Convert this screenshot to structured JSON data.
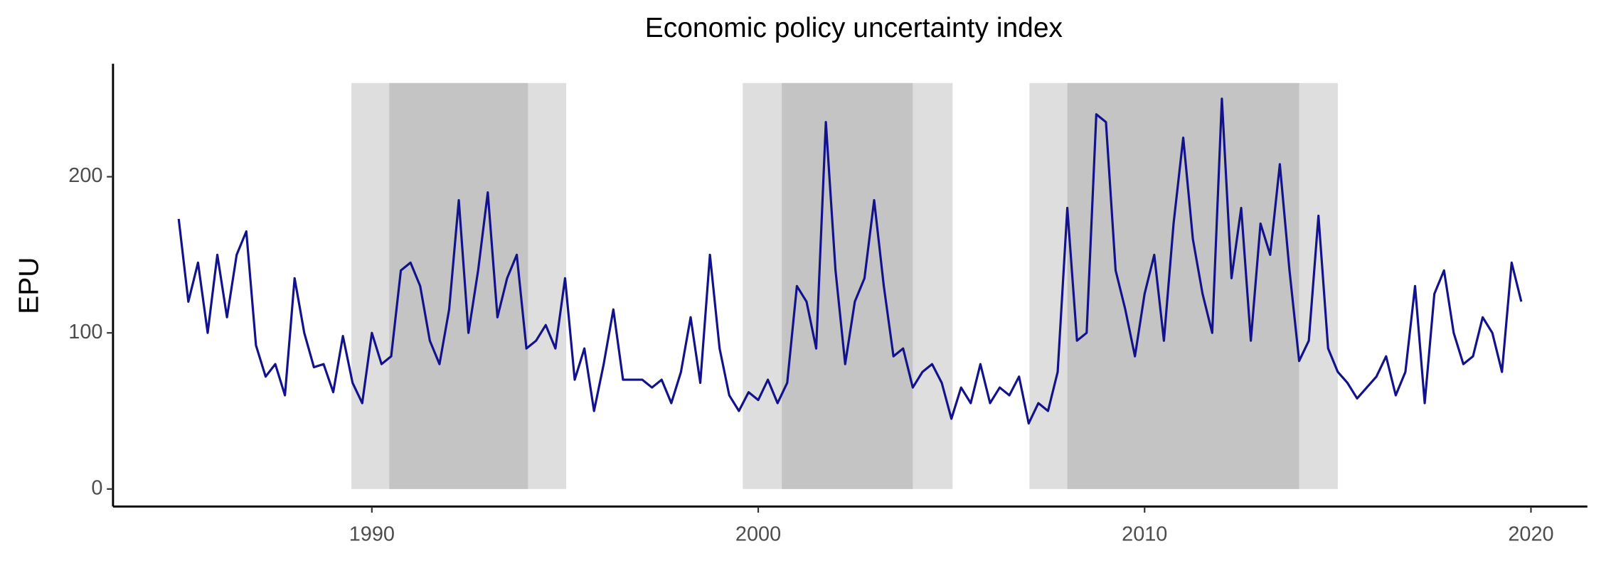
{
  "chart_data": {
    "type": "line",
    "title": "Economic policy uncertainty index",
    "y_label": "EPU",
    "xlim": [
      1983.3,
      2021.46
    ],
    "ylim": [
      -11.2,
      272.4
    ],
    "xticks": [
      1990,
      2000,
      2010,
      2020
    ],
    "yticks": [
      0,
      100,
      200
    ],
    "grid": false,
    "shade_top": 260,
    "shaded_regions": [
      {
        "range": [
          1989.47,
          1995.03
        ],
        "color": "#dedede"
      },
      {
        "range": [
          1999.6,
          2005.03
        ],
        "color": "#dedede"
      },
      {
        "range": [
          2007.02,
          2015.0
        ],
        "color": "#dedede"
      },
      {
        "range": [
          1990.45,
          1994.04
        ],
        "color": "#c4c4c4"
      },
      {
        "range": [
          2000.61,
          2004.0
        ],
        "color": "#c4c4c4"
      },
      {
        "range": [
          2008.0,
          2014.0
        ],
        "color": "#c4c4c4"
      }
    ],
    "x": [
      1985.0,
      1985.25,
      1985.5,
      1985.75,
      1986.0,
      1986.25,
      1986.5,
      1986.75,
      1987.0,
      1987.25,
      1987.5,
      1987.75,
      1988.0,
      1988.25,
      1988.5,
      1988.75,
      1989.0,
      1989.25,
      1989.5,
      1989.75,
      1990.0,
      1990.25,
      1990.5,
      1990.75,
      1991.0,
      1991.25,
      1991.5,
      1991.75,
      1992.0,
      1992.25,
      1992.5,
      1992.75,
      1993.0,
      1993.25,
      1993.5,
      1993.75,
      1994.0,
      1994.25,
      1994.5,
      1994.75,
      1995.0,
      1995.25,
      1995.5,
      1995.75,
      1996.0,
      1996.25,
      1996.5,
      1996.75,
      1997.0,
      1997.25,
      1997.5,
      1997.75,
      1998.0,
      1998.25,
      1998.5,
      1998.75,
      1999.0,
      1999.25,
      1999.5,
      1999.75,
      2000.0,
      2000.25,
      2000.5,
      2000.75,
      2001.0,
      2001.25,
      2001.5,
      2001.75,
      2002.0,
      2002.25,
      2002.5,
      2002.75,
      2003.0,
      2003.25,
      2003.5,
      2003.75,
      2004.0,
      2004.25,
      2004.5,
      2004.75,
      2005.0,
      2005.25,
      2005.5,
      2005.75,
      2006.0,
      2006.25,
      2006.5,
      2006.75,
      2007.0,
      2007.25,
      2007.5,
      2007.75,
      2008.0,
      2008.25,
      2008.5,
      2008.75,
      2009.0,
      2009.25,
      2009.5,
      2009.75,
      2010.0,
      2010.25,
      2010.5,
      2010.75,
      2011.0,
      2011.25,
      2011.5,
      2011.75,
      2012.0,
      2012.25,
      2012.5,
      2012.75,
      2013.0,
      2013.25,
      2013.5,
      2013.75,
      2014.0,
      2014.25,
      2014.5,
      2014.75,
      2015.0,
      2015.25,
      2015.5,
      2015.75,
      2016.0,
      2016.25,
      2016.5,
      2016.75,
      2017.0,
      2017.25,
      2017.5,
      2017.75,
      2018.0,
      2018.25,
      2018.5,
      2018.75,
      2019.0,
      2019.25,
      2019.5,
      2019.75
    ],
    "series": [
      {
        "name": "EPU",
        "color": "#12128c",
        "values": [
          173,
          120,
          145,
          100,
          150,
          110,
          150,
          165,
          92,
          72,
          80,
          60,
          135,
          100,
          78,
          80,
          62,
          98,
          68,
          55,
          100,
          80,
          85,
          140,
          145,
          130,
          95,
          80,
          115,
          185,
          100,
          140,
          190,
          110,
          135,
          150,
          90,
          95,
          105,
          90,
          135,
          70,
          90,
          50,
          80,
          115,
          70,
          70,
          70,
          65,
          70,
          55,
          75,
          110,
          68,
          150,
          90,
          60,
          50,
          62,
          57,
          70,
          55,
          68,
          130,
          120,
          90,
          235,
          140,
          80,
          120,
          135,
          185,
          130,
          85,
          90,
          65,
          75,
          80,
          68,
          45,
          65,
          55,
          80,
          55,
          65,
          60,
          72,
          42,
          55,
          50,
          75,
          180,
          95,
          100,
          240,
          235,
          140,
          115,
          85,
          125,
          150,
          95,
          170,
          225,
          160,
          125,
          100,
          250,
          135,
          180,
          95,
          170,
          150,
          208,
          140,
          82,
          95,
          175,
          90,
          75,
          68,
          58,
          65,
          72,
          85,
          60,
          75,
          130,
          55,
          125,
          140,
          100,
          80,
          85,
          110,
          100,
          75,
          145,
          120
        ]
      }
    ]
  }
}
